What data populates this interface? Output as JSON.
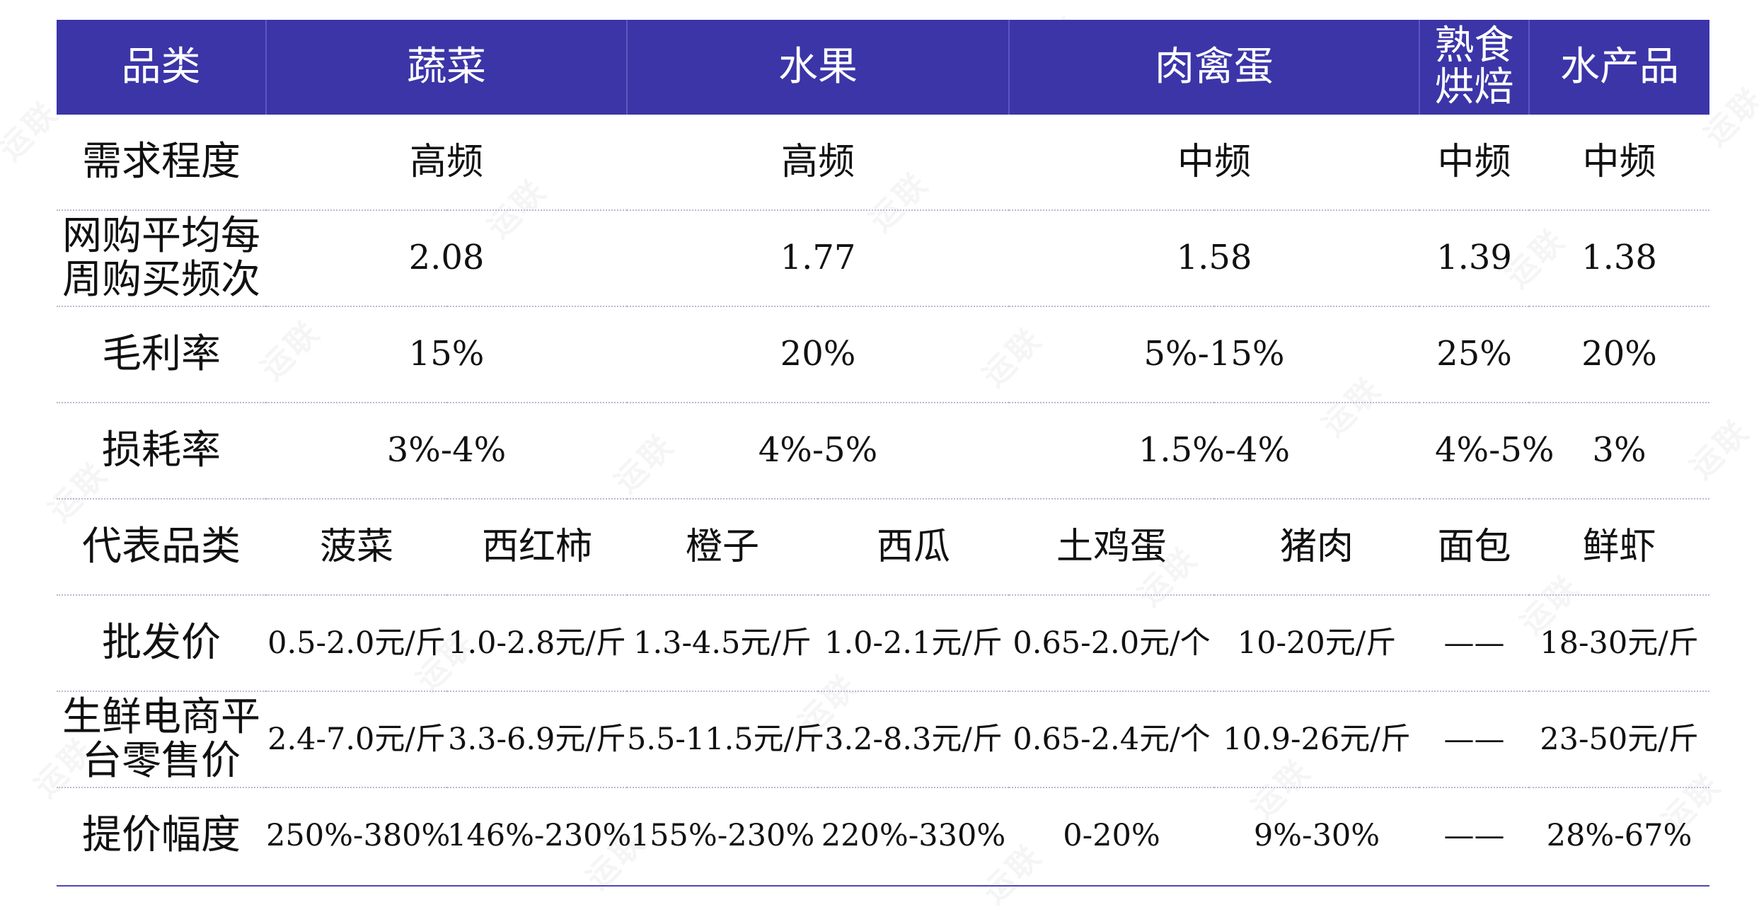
{
  "watermark": "运联",
  "header": {
    "col0": "品类",
    "vegetables": "蔬菜",
    "fruit": "水果",
    "meat_poultry_eggs": "肉禽蛋",
    "deli_bakery": "熟食烘焙",
    "aquatic": "水产品"
  },
  "rows": {
    "demand": {
      "label": "需求程度",
      "vegetables": "高频",
      "fruit": "高频",
      "meat_poultry_eggs": "中频",
      "deli_bakery": "中频",
      "aquatic": "中频"
    },
    "weekly_frequency": {
      "label": "网购平均每周购买频次",
      "vegetables": "2.08",
      "fruit": "1.77",
      "meat_poultry_eggs": "1.58",
      "deli_bakery": "1.39",
      "aquatic": "1.38"
    },
    "gross_margin": {
      "label": "毛利率",
      "vegetables": "15%",
      "fruit": "20%",
      "meat_poultry_eggs": "5%-15%",
      "deli_bakery": "25%",
      "aquatic": "20%"
    },
    "loss_rate": {
      "label": "损耗率",
      "vegetables": "3%-4%",
      "fruit": "4%-5%",
      "meat_poultry_eggs": "1.5%-4%",
      "deli_bakery": "4%-5%",
      "aquatic": "3%"
    },
    "representative": {
      "label": "代表品类",
      "items": [
        "菠菜",
        "西红柿",
        "橙子",
        "西瓜",
        "土鸡蛋",
        "猪肉",
        "面包",
        "鲜虾"
      ]
    },
    "wholesale_price": {
      "label": "批发价",
      "items": [
        "0.5-2.0元/斤",
        "1.0-2.8元/斤",
        "1.3-4.5元/斤",
        "1.0-2.1元/斤",
        "0.65-2.0元/个",
        "10-20元/斤",
        "——",
        "18-30元/斤"
      ]
    },
    "retail_price": {
      "label": "生鲜电商平台零售价",
      "items": [
        "2.4-7.0元/斤",
        "3.3-6.9元/斤",
        "5.5-11.5元/斤",
        "3.2-8.3元/斤",
        "0.65-2.4元/个",
        "10.9-26元/斤",
        "——",
        "23-50元/斤"
      ]
    },
    "markup": {
      "label": "提价幅度",
      "items": [
        "250%-380%",
        "146%-230%",
        "155%-230%",
        "220%-330%",
        "0-20%",
        "9%-30%",
        "——",
        "28%-67%"
      ]
    }
  },
  "colors": {
    "header_bg": "#3b35a8",
    "header_text": "#ffffff",
    "row_divider": "#b9b9cf",
    "bottom_rule": "#4c47b6"
  }
}
